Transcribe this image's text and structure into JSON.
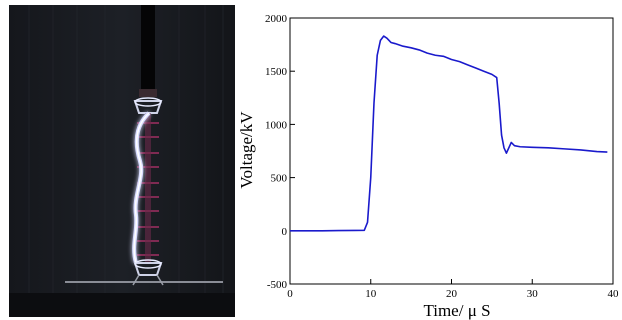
{
  "photo": {
    "description_icon": "flashover-photo"
  },
  "chart_data": {
    "type": "line",
    "xlabel": "Time/ μ S",
    "ylabel": "Voltage/kV",
    "xlim": [
      0,
      40
    ],
    "ylim": [
      -500,
      2000
    ],
    "xticks": [
      0,
      10,
      20,
      30,
      40
    ],
    "yticks": [
      -500,
      0,
      500,
      1000,
      1500,
      2000
    ],
    "xtick_labels": [
      "0",
      "10",
      "20",
      "30",
      "40"
    ],
    "ytick_labels": [
      "-500",
      "0",
      "500",
      "1000",
      "1500",
      "2000"
    ],
    "grid": false,
    "series": [
      {
        "color": "#1a1acc",
        "x": [
          0,
          2,
          4,
          6,
          8,
          9.2,
          9.6,
          10.0,
          10.4,
          10.8,
          11.2,
          11.6,
          12.0,
          12.5,
          13,
          14,
          15,
          16,
          17,
          18,
          19,
          20,
          21,
          22,
          23,
          24,
          25,
          25.6,
          25.9,
          26.2,
          26.5,
          26.8,
          27.1,
          27.4,
          27.8,
          28.5,
          30,
          32,
          34,
          36,
          38,
          39.3
        ],
        "y": [
          0,
          0,
          0,
          2,
          3,
          5,
          80,
          500,
          1200,
          1650,
          1790,
          1830,
          1810,
          1770,
          1760,
          1735,
          1720,
          1700,
          1670,
          1650,
          1640,
          1610,
          1590,
          1560,
          1530,
          1500,
          1470,
          1440,
          1200,
          900,
          780,
          730,
          780,
          830,
          800,
          790,
          785,
          780,
          770,
          760,
          745,
          740
        ]
      }
    ]
  }
}
